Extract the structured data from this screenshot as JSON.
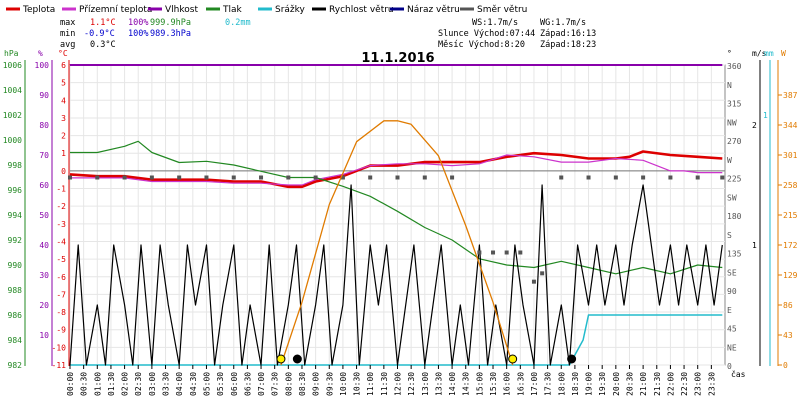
{
  "legend": [
    {
      "label": "Teplota",
      "color": "#dd0000"
    },
    {
      "label": "Přízemní teplota",
      "color": "#cc33cc"
    },
    {
      "label": "Vlhkost",
      "color": "#8800aa"
    },
    {
      "label": "Tlak",
      "color": "#228822"
    },
    {
      "label": "Srážky",
      "color": "#22bbcc"
    },
    {
      "label": "Rychlost větru",
      "color": "#000000"
    },
    {
      "label": "Náraz větru",
      "color": "#000088"
    },
    {
      "label": "Směr větru",
      "color": "#555555"
    }
  ],
  "stats": {
    "max_label": "max",
    "max_temp": "1.1°C",
    "max_hum": "100%",
    "max_press": "999.9hPa",
    "max_rain": "0.2mm",
    "min_label": "min",
    "min_temp": "-0.9°C",
    "min_hum": "100%",
    "min_press": "989.3hPa",
    "avg_label": "avg",
    "avg_temp": "0.3°C"
  },
  "info": {
    "ws": "WS:1.7m/s",
    "wg": "WG:1.7m/s",
    "sun": "Slunce Východ:07:44",
    "sun_set": "Západ:16:13",
    "moon": "Měsíc Východ:8:20",
    "moon_set": "Západ:18:23"
  },
  "chart_data": {
    "type": "line",
    "title": "11.1.2016",
    "x_label": "čas",
    "x_ticks": [
      "00:00",
      "00:30",
      "01:00",
      "01:30",
      "02:00",
      "02:30",
      "03:00",
      "03:30",
      "04:00",
      "04:30",
      "05:00",
      "05:30",
      "06:00",
      "06:30",
      "07:00",
      "07:30",
      "08:00",
      "08:30",
      "09:00",
      "09:30",
      "10:00",
      "10:30",
      "11:00",
      "11:30",
      "12:00",
      "12:30",
      "13:00",
      "13:30",
      "14:00",
      "14:30",
      "15:00",
      "15:30",
      "16:00",
      "16:30",
      "17:00",
      "17:30",
      "18:00",
      "18:30",
      "19:00",
      "19:30",
      "20:00",
      "20:30",
      "21:00",
      "21:30",
      "22:00",
      "22:30",
      "23:00",
      "23:30"
    ],
    "axes": {
      "hpa": {
        "unit": "hPa",
        "ticks": [
          "1006",
          "1004",
          "1002",
          "1000",
          "998",
          "996",
          "994",
          "992",
          "990",
          "988",
          "986",
          "984",
          "982"
        ],
        "range": [
          982,
          1006
        ]
      },
      "humidity": {
        "unit": "%",
        "ticks": [
          "100",
          "90",
          "80",
          "70",
          "60",
          "50",
          "40",
          "30",
          "20",
          "10"
        ],
        "range": [
          0,
          100
        ]
      },
      "temp": {
        "unit": "°C",
        "ticks": [
          "6",
          "5",
          "4",
          "3",
          "2",
          "1",
          "0",
          "-1",
          "-2",
          "-3",
          "-4",
          "-5",
          "-6",
          "-7",
          "-8",
          "-9",
          "-10",
          "-11"
        ],
        "range": [
          -11,
          6
        ]
      },
      "wind_dir": {
        "unit": "°",
        "ticks": [
          "360",
          "N",
          "315",
          "NW",
          "270",
          "W",
          "225",
          "SW",
          "180",
          "S",
          "135",
          "SE",
          "90",
          "E",
          "45",
          "NE",
          "0"
        ]
      },
      "wind_speed": {
        "unit": "m/s",
        "ticks": [
          "2",
          "1"
        ],
        "range": [
          0,
          2.5
        ]
      },
      "rain": {
        "unit": "mm",
        "ticks": [
          "1"
        ],
        "range": [
          0,
          1.2
        ]
      },
      "radiation": {
        "unit": "W",
        "ticks": [
          "387",
          "344",
          "301",
          "258",
          "215",
          "172",
          "129",
          "86",
          "43",
          "0"
        ],
        "range": [
          0,
          430
        ]
      }
    },
    "series": [
      {
        "name": "Teplota",
        "unit": "°C",
        "color": "#dd0000",
        "x": [
          0,
          1,
          2,
          3,
          4,
          5,
          6,
          7,
          8,
          8.5,
          9,
          10,
          11,
          12,
          13,
          14,
          15,
          16,
          17,
          18,
          19,
          20,
          20.5,
          21,
          22,
          23,
          23.9
        ],
        "values": [
          -0.2,
          -0.3,
          -0.3,
          -0.5,
          -0.5,
          -0.5,
          -0.6,
          -0.6,
          -0.9,
          -0.9,
          -0.6,
          -0.3,
          0.3,
          0.3,
          0.5,
          0.5,
          0.5,
          0.8,
          1.0,
          0.9,
          0.7,
          0.7,
          0.8,
          1.1,
          0.9,
          0.8,
          0.7
        ]
      },
      {
        "name": "Přízemní teplota",
        "unit": "°C",
        "color": "#cc33cc",
        "x": [
          0,
          1,
          2,
          3,
          4,
          5,
          6,
          7,
          8,
          8.5,
          9,
          10,
          11,
          12,
          13,
          14,
          15,
          16,
          17,
          18,
          19,
          20,
          21,
          22,
          22.5,
          23,
          23.9
        ],
        "values": [
          -0.4,
          -0.4,
          -0.4,
          -0.6,
          -0.6,
          -0.6,
          -0.7,
          -0.7,
          -0.8,
          -0.8,
          -0.5,
          -0.2,
          0.3,
          0.4,
          0.4,
          0.3,
          0.4,
          0.9,
          0.8,
          0.5,
          0.5,
          0.7,
          0.6,
          0.0,
          0.0,
          -0.1,
          -0.1
        ]
      },
      {
        "name": "Vlhkost",
        "unit": "%",
        "color": "#8800aa",
        "x": [
          0,
          23.9
        ],
        "values": [
          100,
          100
        ]
      },
      {
        "name": "Tlak",
        "unit": "hPa",
        "color": "#228822",
        "x": [
          0,
          1,
          2,
          2.5,
          3,
          4,
          5,
          6,
          7,
          8,
          9,
          10,
          11,
          12,
          13,
          14,
          15,
          16,
          17,
          18,
          19,
          20,
          21,
          22,
          23,
          23.9
        ],
        "values": [
          999.0,
          999.0,
          999.5,
          999.9,
          999.0,
          998.2,
          998.3,
          998.0,
          997.5,
          997.0,
          997.0,
          996.3,
          995.5,
          994.3,
          993.0,
          992.0,
          990.5,
          990.0,
          989.8,
          990.3,
          989.8,
          989.3,
          989.8,
          989.3,
          990.0,
          989.8
        ]
      },
      {
        "name": "Srážky",
        "unit": "mm",
        "color": "#22bbcc",
        "x": [
          0,
          18.3,
          18.8,
          19,
          23.9
        ],
        "values": [
          0,
          0,
          0.1,
          0.2,
          0.2
        ]
      },
      {
        "name": "Rychlost větru",
        "unit": "m/s",
        "color": "#000000",
        "x": [
          0,
          0.3,
          0.6,
          1,
          1.3,
          1.6,
          2,
          2.3,
          2.6,
          3,
          3.3,
          3.6,
          4,
          4.3,
          4.6,
          5,
          5.3,
          5.6,
          6,
          6.3,
          6.6,
          7,
          7.3,
          7.6,
          8,
          8.3,
          8.6,
          9,
          9.3,
          9.6,
          10,
          10.3,
          10.6,
          11,
          11.3,
          11.6,
          12,
          12.3,
          12.6,
          13,
          13.3,
          13.6,
          14,
          14.3,
          14.6,
          15,
          15.3,
          15.6,
          16,
          16.3,
          16.6,
          17,
          17.3,
          17.6,
          18,
          18.3,
          18.6,
          19,
          19.3,
          19.6,
          20,
          20.3,
          20.6,
          21,
          21.3,
          21.6,
          22,
          22.3,
          22.6,
          23,
          23.3,
          23.6,
          23.9
        ],
        "values": [
          0,
          1.0,
          0,
          0.5,
          0,
          1.0,
          0.5,
          0,
          1.0,
          0,
          1.0,
          0.5,
          0,
          1.0,
          0.5,
          1.0,
          0,
          0.5,
          1.0,
          0,
          0.5,
          0,
          1.0,
          0,
          0.5,
          1.0,
          0,
          0.5,
          1.0,
          0,
          0.5,
          1.5,
          0,
          1.0,
          0.5,
          1.0,
          0,
          0.5,
          1.0,
          0,
          0.5,
          1.0,
          0,
          0.5,
          0,
          1.0,
          0,
          0.5,
          0,
          1.0,
          0.5,
          0,
          1.5,
          0,
          0.5,
          0,
          1.0,
          0.5,
          1.0,
          0.5,
          1.0,
          0.5,
          1.0,
          1.5,
          1.0,
          0.5,
          1.0,
          0.5,
          1.0,
          0.5,
          1.0,
          0.5,
          1.0
        ]
      },
      {
        "name": "Náraz větru",
        "unit": "m/s",
        "color": "#000088",
        "x": [],
        "values": []
      },
      {
        "name": "Směr větru",
        "unit": "°",
        "color": "#555555",
        "x": [
          0,
          1,
          2,
          3,
          4,
          5,
          6,
          7,
          8,
          9,
          10,
          11,
          12,
          13,
          14,
          15,
          15.5,
          16,
          16.5,
          17,
          17.3,
          18,
          19,
          20,
          21,
          22,
          23,
          23.9
        ],
        "values": [
          225,
          225,
          225,
          225,
          225,
          225,
          225,
          225,
          225,
          225,
          225,
          225,
          225,
          225,
          225,
          135,
          135,
          135,
          135,
          100,
          110,
          225,
          225,
          225,
          225,
          225,
          225,
          225
        ]
      },
      {
        "name": "Sluneční záření",
        "unit": "W",
        "color": "#e07b00",
        "x": [
          7.73,
          8.5,
          9.5,
          10.5,
          11.5,
          12,
          12.5,
          13.5,
          14.5,
          15.5,
          16.22
        ],
        "values": [
          0,
          90,
          230,
          320,
          350,
          350,
          345,
          300,
          200,
          90,
          0
        ]
      }
    ]
  }
}
